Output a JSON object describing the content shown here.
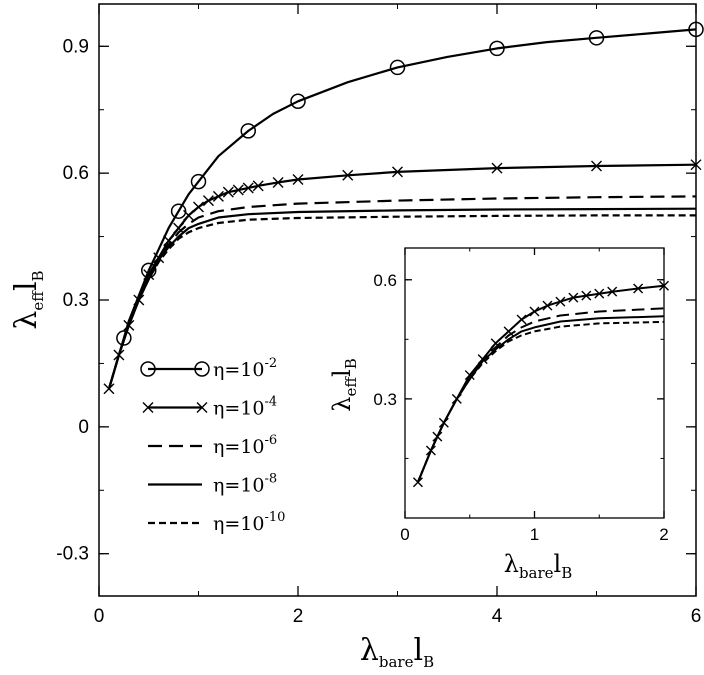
{
  "chart_data": [
    {
      "type": "line",
      "title": "",
      "xlabel": {
        "main": "λ",
        "sub": "bare",
        "tail": "l",
        "tail_sub": "B"
      },
      "ylabel": {
        "main": "λ",
        "sub": "eff",
        "tail": "l",
        "tail_sub": "B"
      },
      "xlim": [
        0,
        6
      ],
      "ylim": [
        -0.4,
        1.0
      ],
      "xticks": [
        0,
        2,
        4,
        6
      ],
      "yticks": [
        -0.3,
        0,
        0.3,
        0.6,
        0.9
      ],
      "xtick_labels": [
        "0",
        "2",
        "4",
        "6"
      ],
      "ytick_labels": [
        "-0.3",
        "0",
        "0.3",
        "0.6",
        "0.9"
      ],
      "legend_position": "center-left",
      "series": [
        {
          "name": "η=10",
          "exponent": "-2",
          "marker": "circle",
          "dash": "solid",
          "points": [
            [
              0.1,
              0.09
            ],
            [
              0.2,
              0.17
            ],
            [
              0.25,
              0.21
            ],
            [
              0.3,
              0.25
            ],
            [
              0.4,
              0.31
            ],
            [
              0.5,
              0.37
            ],
            [
              0.6,
              0.42
            ],
            [
              0.7,
              0.47
            ],
            [
              0.8,
              0.51
            ],
            [
              0.9,
              0.55
            ],
            [
              1.0,
              0.58
            ],
            [
              1.2,
              0.64
            ],
            [
              1.5,
              0.7
            ],
            [
              1.75,
              0.74
            ],
            [
              2.0,
              0.77
            ],
            [
              2.5,
              0.815
            ],
            [
              3.0,
              0.85
            ],
            [
              3.5,
              0.875
            ],
            [
              4.0,
              0.895
            ],
            [
              4.5,
              0.91
            ],
            [
              5.0,
              0.92
            ],
            [
              5.5,
              0.93
            ],
            [
              6.0,
              0.94
            ]
          ],
          "marker_x": [
            0.25,
            0.5,
            0.8,
            1.0,
            1.5,
            2.0,
            3.0,
            4.0,
            5.0,
            6.0
          ]
        },
        {
          "name": "η=10",
          "exponent": "-4",
          "marker": "x",
          "dash": "solid",
          "points": [
            [
              0.1,
              0.09
            ],
            [
              0.2,
              0.17
            ],
            [
              0.3,
              0.24
            ],
            [
              0.4,
              0.3
            ],
            [
              0.5,
              0.36
            ],
            [
              0.6,
              0.4
            ],
            [
              0.7,
              0.44
            ],
            [
              0.8,
              0.47
            ],
            [
              0.9,
              0.5
            ],
            [
              1.0,
              0.52
            ],
            [
              1.1,
              0.535
            ],
            [
              1.2,
              0.545
            ],
            [
              1.3,
              0.555
            ],
            [
              1.4,
              0.56
            ],
            [
              1.5,
              0.565
            ],
            [
              1.6,
              0.57
            ],
            [
              1.8,
              0.578
            ],
            [
              2.0,
              0.585
            ],
            [
              2.5,
              0.595
            ],
            [
              3.0,
              0.603
            ],
            [
              4.0,
              0.612
            ],
            [
              5.0,
              0.617
            ],
            [
              6.0,
              0.62
            ]
          ],
          "marker_x": [
            0.1,
            0.2,
            0.3,
            0.4,
            0.5,
            0.6,
            0.7,
            0.8,
            0.9,
            1.0,
            1.1,
            1.2,
            1.3,
            1.4,
            1.5,
            1.6,
            1.8,
            2.0,
            2.5,
            3.0,
            4.0,
            5.0,
            6.0
          ]
        },
        {
          "name": "η=10",
          "exponent": "-6",
          "marker": "none",
          "dash": "long-dash",
          "points": [
            [
              0.1,
              0.09
            ],
            [
              0.2,
              0.17
            ],
            [
              0.3,
              0.24
            ],
            [
              0.4,
              0.3
            ],
            [
              0.5,
              0.35
            ],
            [
              0.6,
              0.4
            ],
            [
              0.7,
              0.43
            ],
            [
              0.8,
              0.46
            ],
            [
              0.9,
              0.48
            ],
            [
              1.0,
              0.495
            ],
            [
              1.2,
              0.51
            ],
            [
              1.5,
              0.52
            ],
            [
              2.0,
              0.528
            ],
            [
              3.0,
              0.535
            ],
            [
              4.0,
              0.54
            ],
            [
              5.0,
              0.543
            ],
            [
              6.0,
              0.545
            ]
          ],
          "marker_x": []
        },
        {
          "name": "η=10",
          "exponent": "-8",
          "marker": "none",
          "dash": "solid",
          "points": [
            [
              0.1,
              0.09
            ],
            [
              0.2,
              0.17
            ],
            [
              0.3,
              0.24
            ],
            [
              0.4,
              0.3
            ],
            [
              0.5,
              0.35
            ],
            [
              0.6,
              0.395
            ],
            [
              0.7,
              0.425
            ],
            [
              0.8,
              0.45
            ],
            [
              0.9,
              0.47
            ],
            [
              1.0,
              0.48
            ],
            [
              1.2,
              0.495
            ],
            [
              1.5,
              0.503
            ],
            [
              2.0,
              0.508
            ],
            [
              3.0,
              0.512
            ],
            [
              4.0,
              0.514
            ],
            [
              5.0,
              0.515
            ],
            [
              6.0,
              0.516
            ]
          ],
          "marker_x": []
        },
        {
          "name": "η=10",
          "exponent": "-10",
          "marker": "none",
          "dash": "short-dash",
          "points": [
            [
              0.1,
              0.09
            ],
            [
              0.2,
              0.17
            ],
            [
              0.3,
              0.24
            ],
            [
              0.4,
              0.3
            ],
            [
              0.5,
              0.35
            ],
            [
              0.6,
              0.39
            ],
            [
              0.7,
              0.42
            ],
            [
              0.8,
              0.445
            ],
            [
              0.9,
              0.46
            ],
            [
              1.0,
              0.47
            ],
            [
              1.2,
              0.482
            ],
            [
              1.5,
              0.49
            ],
            [
              2.0,
              0.494
            ],
            [
              3.0,
              0.497
            ],
            [
              4.0,
              0.499
            ],
            [
              5.0,
              0.5
            ],
            [
              6.0,
              0.5
            ]
          ],
          "marker_x": []
        }
      ]
    },
    {
      "type": "line",
      "role": "inset",
      "title": "",
      "xlabel": {
        "main": "λ",
        "sub": "bare",
        "tail": "l",
        "tail_sub": "B"
      },
      "ylabel": {
        "main": "λ",
        "sub": "eff",
        "tail": "l",
        "tail_sub": "B"
      },
      "xlim": [
        0,
        2
      ],
      "ylim": [
        0.0,
        0.68
      ],
      "xticks": [
        0,
        1,
        2
      ],
      "yticks": [
        0.3,
        0.6
      ],
      "xtick_labels": [
        "0",
        "1",
        "2"
      ],
      "ytick_labels": [
        "0.3",
        "0.6"
      ],
      "series": [
        {
          "exponent": "-4",
          "marker": "x",
          "dash": "solid",
          "points": [
            [
              0.1,
              0.09
            ],
            [
              0.2,
              0.17
            ],
            [
              0.25,
              0.205
            ],
            [
              0.3,
              0.24
            ],
            [
              0.4,
              0.3
            ],
            [
              0.5,
              0.36
            ],
            [
              0.6,
              0.4
            ],
            [
              0.7,
              0.44
            ],
            [
              0.8,
              0.47
            ],
            [
              0.9,
              0.5
            ],
            [
              1.0,
              0.52
            ],
            [
              1.1,
              0.535
            ],
            [
              1.2,
              0.545
            ],
            [
              1.3,
              0.555
            ],
            [
              1.4,
              0.56
            ],
            [
              1.5,
              0.565
            ],
            [
              1.6,
              0.57
            ],
            [
              1.8,
              0.578
            ],
            [
              2.0,
              0.585
            ]
          ],
          "marker_x": [
            0.1,
            0.2,
            0.25,
            0.3,
            0.4,
            0.5,
            0.6,
            0.7,
            0.8,
            0.9,
            1.0,
            1.1,
            1.2,
            1.3,
            1.4,
            1.5,
            1.6,
            1.8,
            2.0
          ]
        },
        {
          "exponent": "-6",
          "marker": "none",
          "dash": "long-dash",
          "points": [
            [
              0.1,
              0.09
            ],
            [
              0.2,
              0.17
            ],
            [
              0.3,
              0.24
            ],
            [
              0.4,
              0.3
            ],
            [
              0.5,
              0.35
            ],
            [
              0.6,
              0.4
            ],
            [
              0.7,
              0.43
            ],
            [
              0.8,
              0.46
            ],
            [
              0.9,
              0.48
            ],
            [
              1.0,
              0.495
            ],
            [
              1.2,
              0.51
            ],
            [
              1.5,
              0.52
            ],
            [
              2.0,
              0.528
            ]
          ],
          "marker_x": []
        },
        {
          "exponent": "-8",
          "marker": "none",
          "dash": "solid",
          "points": [
            [
              0.1,
              0.09
            ],
            [
              0.2,
              0.17
            ],
            [
              0.3,
              0.24
            ],
            [
              0.4,
              0.3
            ],
            [
              0.5,
              0.35
            ],
            [
              0.6,
              0.395
            ],
            [
              0.7,
              0.425
            ],
            [
              0.8,
              0.45
            ],
            [
              0.9,
              0.47
            ],
            [
              1.0,
              0.48
            ],
            [
              1.2,
              0.495
            ],
            [
              1.5,
              0.503
            ],
            [
              2.0,
              0.508
            ]
          ],
          "marker_x": []
        },
        {
          "exponent": "-10",
          "marker": "none",
          "dash": "short-dash",
          "points": [
            [
              0.1,
              0.09
            ],
            [
              0.2,
              0.17
            ],
            [
              0.3,
              0.24
            ],
            [
              0.4,
              0.3
            ],
            [
              0.5,
              0.35
            ],
            [
              0.6,
              0.39
            ],
            [
              0.7,
              0.42
            ],
            [
              0.8,
              0.445
            ],
            [
              0.9,
              0.46
            ],
            [
              1.0,
              0.47
            ],
            [
              1.2,
              0.482
            ],
            [
              1.5,
              0.49
            ],
            [
              2.0,
              0.494
            ]
          ],
          "marker_x": []
        }
      ]
    }
  ]
}
